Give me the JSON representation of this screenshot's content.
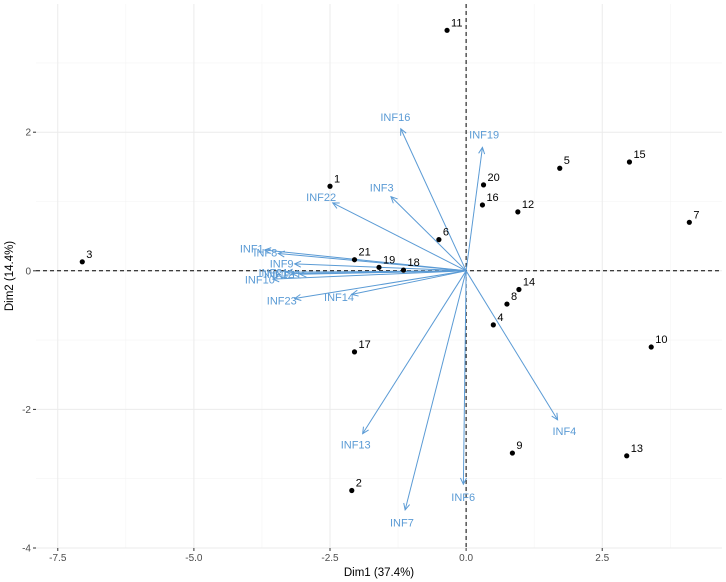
{
  "chart_data": {
    "type": "scatter",
    "subtype": "pca-biplot",
    "xlabel": "Dim1 (37.4%)",
    "ylabel": "Dim2 (14.4%)",
    "xlim": [
      -7.9,
      4.7
    ],
    "ylim": [
      -4.0,
      3.85
    ],
    "xticks": [
      -7.5,
      -5.0,
      -2.5,
      0.0,
      2.5
    ],
    "xtick_labels": [
      "-7.5",
      "-5.0",
      "-2.5",
      "0.0",
      "2.5"
    ],
    "yticks": [
      -4,
      -2,
      0,
      2
    ],
    "ytick_labels": [
      "-4",
      "-2",
      "0",
      "2"
    ],
    "grid": true,
    "reference_lines": {
      "x": 0,
      "y": 0,
      "style": "dashed"
    },
    "colors": {
      "points": "#000000",
      "arrows": "#5b9bd5",
      "grid": "#ebebeb"
    },
    "points": [
      {
        "label": "1",
        "x": -2.5,
        "y": 1.22
      },
      {
        "label": "2",
        "x": -2.1,
        "y": -3.17
      },
      {
        "label": "3",
        "x": -7.05,
        "y": 0.13
      },
      {
        "label": "4",
        "x": 0.5,
        "y": -0.78
      },
      {
        "label": "5",
        "x": 1.72,
        "y": 1.48
      },
      {
        "label": "6",
        "x": -0.5,
        "y": 0.45
      },
      {
        "label": "7",
        "x": 4.1,
        "y": 0.7
      },
      {
        "label": "8",
        "x": 0.75,
        "y": -0.48
      },
      {
        "label": "9",
        "x": 0.85,
        "y": -2.63
      },
      {
        "label": "10",
        "x": 3.4,
        "y": -1.1
      },
      {
        "label": "11",
        "x": -0.35,
        "y": 3.47
      },
      {
        "label": "12",
        "x": 0.95,
        "y": 0.85
      },
      {
        "label": "13",
        "x": 2.95,
        "y": -2.67
      },
      {
        "label": "14",
        "x": 0.97,
        "y": -0.27
      },
      {
        "label": "15",
        "x": 3.0,
        "y": 1.57
      },
      {
        "label": "16",
        "x": 0.3,
        "y": 0.95
      },
      {
        "label": "17",
        "x": -2.05,
        "y": -1.17
      },
      {
        "label": "18",
        "x": -1.15,
        "y": 0.01
      },
      {
        "label": "19",
        "x": -1.6,
        "y": 0.05
      },
      {
        "label": "20",
        "x": 0.32,
        "y": 1.24
      },
      {
        "label": "21",
        "x": -2.05,
        "y": 0.16
      }
    ],
    "variables": [
      {
        "label": "INF1",
        "x": -3.7,
        "y": 0.3
      },
      {
        "label": "INF3",
        "x": -1.38,
        "y": 1.07
      },
      {
        "label": "INF4",
        "x": 1.68,
        "y": -2.15
      },
      {
        "label": "INF6",
        "x": -0.05,
        "y": -3.08
      },
      {
        "label": "INF7",
        "x": -1.12,
        "y": -3.45
      },
      {
        "label": "INF8",
        "x": -3.45,
        "y": 0.25
      },
      {
        "label": "INF9",
        "x": -3.15,
        "y": 0.1
      },
      {
        "label": "INF10",
        "x": -3.55,
        "y": -0.12
      },
      {
        "label": "INF11",
        "x": -3.05,
        "y": -0.05
      },
      {
        "label": "INF12",
        "x": -3.2,
        "y": -0.04
      },
      {
        "label": "INF13",
        "x": -1.9,
        "y": -2.35
      },
      {
        "label": "INF14",
        "x": -2.1,
        "y": -0.34
      },
      {
        "label": "INF16",
        "x": -1.2,
        "y": 2.05
      },
      {
        "label": "INF19",
        "x": 0.3,
        "y": 1.78
      },
      {
        "label": "INF21",
        "x": -3.3,
        "y": -0.02
      },
      {
        "label": "INF22",
        "x": -2.45,
        "y": 0.98
      },
      {
        "label": "INF23",
        "x": -3.15,
        "y": -0.4
      }
    ]
  }
}
